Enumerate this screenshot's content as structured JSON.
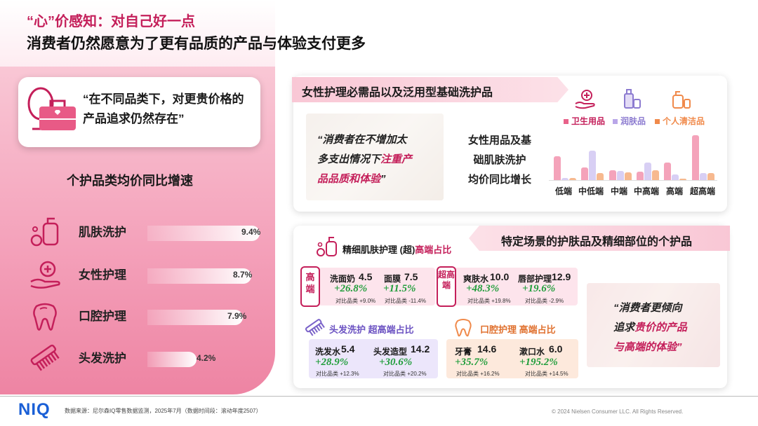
{
  "header": {
    "title": "“心”价感知：对自己好一点",
    "subtitle": "消费者仍然愿意为了更有品质的产品与体验支付更多"
  },
  "left": {
    "quote": "“在不同品类下，对更贵价格的产品追求仍然存在”",
    "section_title": "个护品类均价同比增速",
    "items": [
      {
        "label": "肌肤洗护",
        "value": "9.4%",
        "pct": 9.4,
        "icon": "lotion-bottle-icon"
      },
      {
        "label": "女性护理",
        "value": "8.7%",
        "pct": 8.7,
        "icon": "hand-care-icon"
      },
      {
        "label": "口腔护理",
        "value": "7.9%",
        "pct": 7.9,
        "icon": "tooth-icon"
      },
      {
        "label": "头发洗护",
        "value": "4.2%",
        "pct": 4.2,
        "icon": "comb-icon"
      }
    ]
  },
  "top_panel": {
    "ribbon": "女性护理必需品以及泛用型基础洗护品",
    "photo_quote_a": "“消费者在不增加太",
    "photo_quote_b": "多支出情况下",
    "photo_quote_hl1": "注重产",
    "photo_quote_hl2": "品品质和体验",
    "photo_quote_end": "”",
    "middle_text": [
      "女性用品及基",
      "础肌肤洗护",
      "均价同比增长"
    ],
    "legend": [
      {
        "label": "卫生用品",
        "color": "#e8628a"
      },
      {
        "label": "润肤品",
        "color": "#b9a6e8"
      },
      {
        "label": "个人清洁品",
        "color": "#f08a4b"
      }
    ],
    "categories": [
      "低端",
      "中低端",
      "中端",
      "中高端",
      "高端",
      "超高端"
    ]
  },
  "bottom_panel": {
    "ribbon": "特定场景的护肤品及精细部位的个护品",
    "skin_title_a": "精细肌肤护理 (超)",
    "skin_title_b": "高端占比",
    "bracket_high": "高端",
    "bracket_super": "超高端",
    "skin_items": [
      {
        "name": "洗面奶",
        "value": "4.5",
        "growth": "+26.8%",
        "note": "对比品类 +9.0%"
      },
      {
        "name": "面膜",
        "value": "7.5",
        "growth": "+11.5%",
        "note": "对比品类 -11.4%"
      },
      {
        "name": "爽肤水",
        "value": "10.0",
        "growth": "+48.3%",
        "note": "对比品类 +19.8%"
      },
      {
        "name": "唇部护理",
        "value": "12.9",
        "growth": "+19.6%",
        "note": "对比品类 -2.9%"
      }
    ],
    "hair_title_a": "头发洗护 ",
    "hair_title_b": "超高端占比",
    "hair_items": [
      {
        "name": "洗发水",
        "value": "5.4",
        "growth": "+28.9%",
        "note": "对比品类 +12.3%"
      },
      {
        "name": "头发造型",
        "value": "14.2",
        "growth": "+30.6%",
        "note": "对比品类 +20.2%"
      }
    ],
    "oral_title_a": "口腔护理 ",
    "oral_title_b": "高端占比",
    "oral_items": [
      {
        "name": "牙膏",
        "value": "14.6",
        "growth": "+35.7%",
        "note": "对比品类 +16.2%"
      },
      {
        "name": "漱口水",
        "value": "6.0",
        "growth": "+195.2%",
        "note": "对比品类 +14.5%"
      }
    ],
    "photo_quote": [
      "“消费者更倾向",
      "追求",
      "贵价的产品",
      "与高端的体验”"
    ]
  },
  "footer": {
    "logo": "NIQ",
    "source": "数据来源：尼尔森IQ零售数据监测，2025年7月（数据时间段：滚动年度2507）",
    "copyright": "© 2024 Nielsen Consumer LLC. All Rights Reserved."
  }
}
